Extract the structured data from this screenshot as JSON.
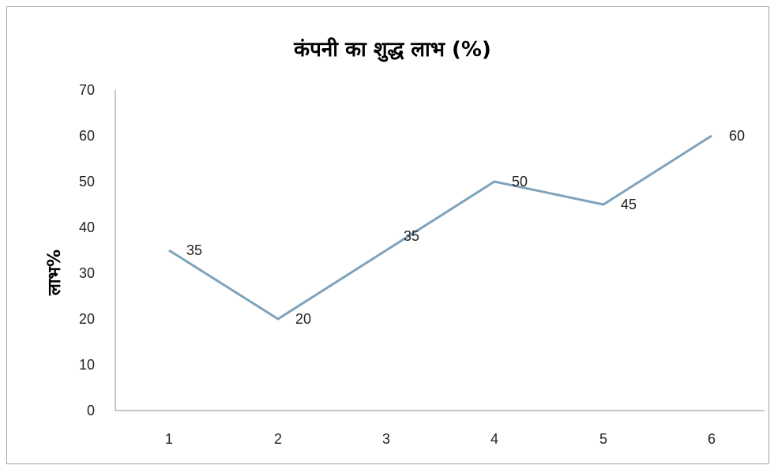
{
  "chart_data": {
    "type": "line",
    "title": "कंपनी का शुद्ध लाभ (%)",
    "xlabel": "",
    "ylabel": "लाभ%",
    "categories": [
      "1",
      "2",
      "3",
      "4",
      "5",
      "6"
    ],
    "series": [
      {
        "values": [
          35,
          20,
          35,
          50,
          45,
          60
        ],
        "color": "#7fa3bd"
      }
    ],
    "ylim": [
      0,
      70
    ],
    "yticks": [
      0,
      10,
      20,
      30,
      40,
      50,
      60,
      70
    ],
    "grid": false,
    "legend": "none",
    "data_labels": true
  }
}
